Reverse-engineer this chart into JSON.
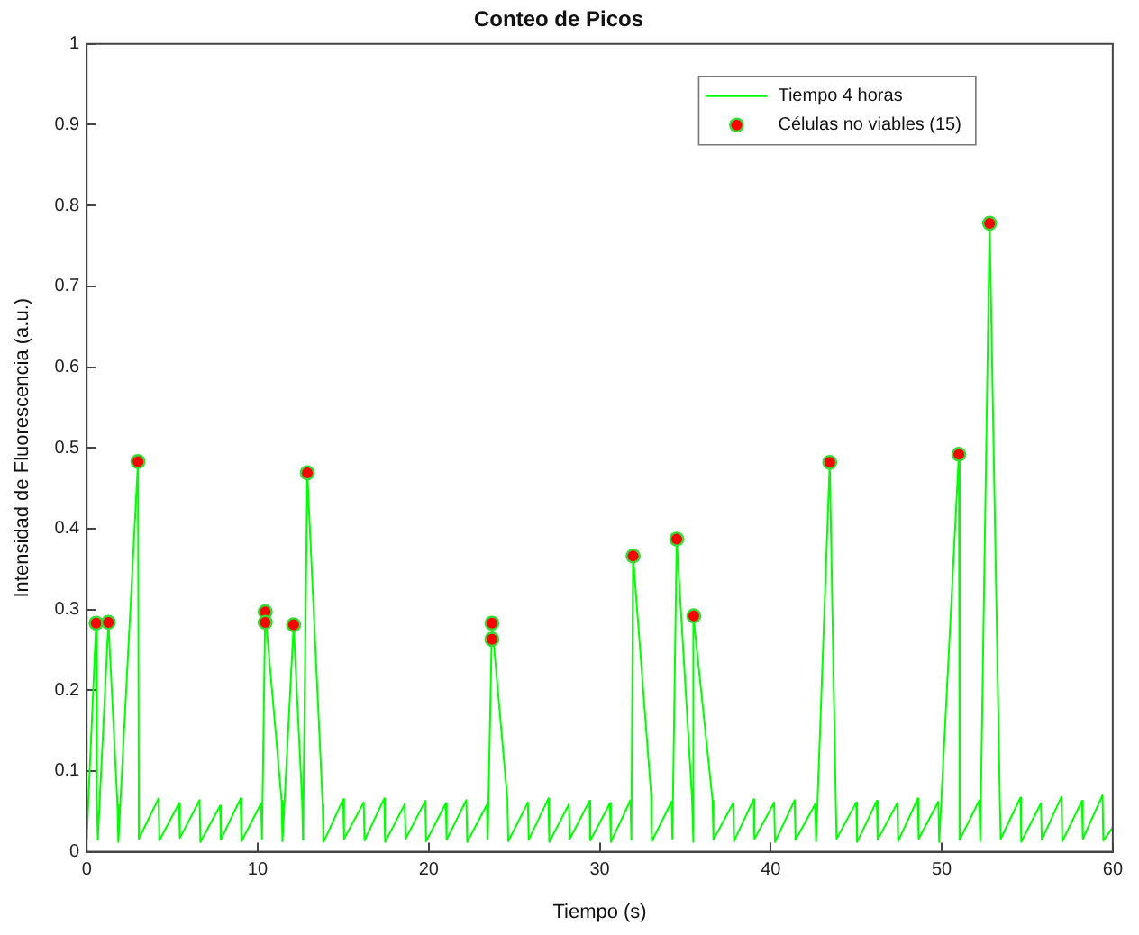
{
  "chart_data": {
    "type": "line",
    "title": "Conteo de Picos",
    "xlabel": "Tiempo (s)",
    "ylabel": "Intensidad de Fluorescencia (a.u.)",
    "xlim": [
      0,
      60
    ],
    "xticks": [
      0,
      10,
      20,
      30,
      40,
      50,
      60
    ],
    "ylim": [
      0,
      1
    ],
    "yticks": [
      0,
      0.1,
      0.2,
      0.3,
      0.4,
      0.5,
      0.6,
      0.7,
      0.8,
      0.9,
      1
    ],
    "grid": false,
    "legend": "top right",
    "marker": "none",
    "line_style": "solid",
    "series": [
      {
        "name": "Tiempo 4 horas",
        "color": "#00ff00",
        "x": [
          0,
          0.55,
          0.6,
          0.65,
          1.27,
          1.8,
          1.85,
          3.0,
          3.05,
          4.2,
          4.25,
          5.4,
          5.45,
          6.6,
          6.65,
          7.8,
          7.85,
          9.0,
          9.05,
          10.2,
          10.25,
          10.44,
          11.4,
          11.45,
          12.1,
          12.6,
          12.65,
          12.9,
          13.8,
          13.85,
          15.0,
          15.05,
          16.2,
          16.25,
          17.4,
          17.45,
          18.6,
          18.65,
          19.8,
          19.85,
          21.0,
          21.05,
          22.2,
          22.25,
          23.4,
          23.45,
          23.7,
          24.6,
          24.65,
          25.8,
          25.85,
          27.0,
          27.05,
          28.2,
          28.25,
          29.4,
          29.45,
          30.6,
          30.65,
          31.8,
          31.85,
          31.95,
          33.0,
          33.05,
          34.2,
          34.25,
          34.5,
          35.4,
          35.45,
          35.5,
          36.6,
          36.65,
          37.8,
          37.85,
          39.0,
          39.05,
          40.2,
          40.25,
          41.4,
          41.45,
          42.6,
          42.65,
          43.45,
          43.8,
          43.85,
          45.0,
          45.05,
          46.2,
          46.25,
          47.4,
          47.45,
          48.6,
          48.65,
          49.8,
          49.85,
          51.0,
          51.05,
          52.2,
          52.25,
          52.8,
          53.4,
          53.45,
          54.6,
          54.65,
          55.8,
          55.85,
          57.0,
          57.05,
          58.2,
          58.25,
          59.4,
          59.45,
          60
        ],
        "values": [
          0.015,
          0.283,
          0.062,
          0.015,
          0.284,
          0.058,
          0.012,
          0.483,
          0.016,
          0.066,
          0.014,
          0.06,
          0.017,
          0.064,
          0.012,
          0.057,
          0.015,
          0.066,
          0.013,
          0.06,
          0.016,
          0.297,
          0.063,
          0.013,
          0.281,
          0.062,
          0.015,
          0.469,
          0.058,
          0.012,
          0.065,
          0.016,
          0.061,
          0.014,
          0.066,
          0.012,
          0.059,
          0.016,
          0.063,
          0.013,
          0.06,
          0.015,
          0.064,
          0.012,
          0.058,
          0.016,
          0.283,
          0.065,
          0.013,
          0.061,
          0.015,
          0.066,
          0.012,
          0.059,
          0.016,
          0.063,
          0.014,
          0.06,
          0.012,
          0.064,
          0.015,
          0.366,
          0.072,
          0.013,
          0.062,
          0.016,
          0.387,
          0.066,
          0.012,
          0.292,
          0.063,
          0.015,
          0.06,
          0.013,
          0.065,
          0.016,
          0.061,
          0.012,
          0.064,
          0.015,
          0.059,
          0.013,
          0.482,
          0.066,
          0.016,
          0.061,
          0.012,
          0.063,
          0.015,
          0.06,
          0.013,
          0.066,
          0.016,
          0.062,
          0.012,
          0.492,
          0.015,
          0.064,
          0.013,
          0.778,
          0.061,
          0.016,
          0.067,
          0.012,
          0.06,
          0.015,
          0.068,
          0.013,
          0.063,
          0.016,
          0.07,
          0.014,
          0.03
        ]
      },
      {
        "name": "Células no viables (15)",
        "type": "scatter",
        "marker": "circle",
        "color": "#ff0000",
        "x": [
          0.55,
          1.27,
          3.0,
          10.44,
          10.44,
          12.1,
          12.9,
          23.7,
          23.7,
          31.95,
          34.5,
          35.5,
          43.45,
          51.0,
          52.8
        ],
        "values": [
          0.283,
          0.284,
          0.483,
          0.297,
          0.284,
          0.281,
          0.469,
          0.283,
          0.263,
          0.366,
          0.387,
          0.292,
          0.482,
          0.492,
          0.778
        ]
      }
    ]
  }
}
